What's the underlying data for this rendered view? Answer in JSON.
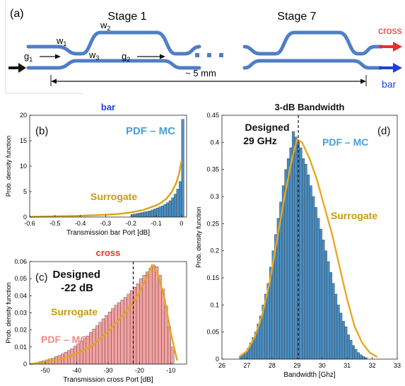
{
  "panel_a": {
    "tag": "(a)",
    "stage1": "Stage 1",
    "stage7": "Stage 7",
    "w1": "w",
    "w1_sub": "1",
    "w2": "w",
    "w2_sub": "2",
    "w3": "w",
    "w3_sub": "3",
    "g1": "g",
    "g1_sub": "1",
    "g2": "g",
    "g2_sub": "2",
    "length": "~ 5 mm",
    "cross": "cross",
    "bar": "bar",
    "colors": {
      "waveguide": "#4f7fc4",
      "cross": "#e8302a",
      "bar": "#1f3fe0"
    }
  },
  "chart_data": [
    {
      "panel": "(b)",
      "type": "bar",
      "title": "bar",
      "title_color": "#1f3fe0",
      "xlabel": "Transmission bar Port [dB]",
      "ylabel": "Prob. density function",
      "xlim": [
        -0.6,
        0.02
      ],
      "ylim": [
        0,
        20
      ],
      "xticks": [
        -0.6,
        -0.5,
        -0.4,
        -0.3,
        -0.2,
        -0.1,
        0
      ],
      "yticks": [
        0,
        5,
        10,
        15,
        20
      ],
      "xtick_labels": [
        "-0.6",
        "-0.5",
        "-0.4",
        "-0.3",
        "-0.2",
        "-0.1",
        "0"
      ],
      "ytick_labels": [
        "0",
        "5",
        "10",
        "15",
        "20"
      ],
      "bar_color": "#4a8ec2",
      "bins": {
        "start": -0.2,
        "width": 0.01,
        "values": [
          0.5,
          0.6,
          0.7,
          0.8,
          0.9,
          1.0,
          1.1,
          1.2,
          1.4,
          1.6,
          1.8,
          2.0,
          2.2,
          2.5,
          2.8,
          3.2,
          3.8,
          4.5,
          5.5,
          7.0,
          19.2
        ]
      },
      "surrogate": {
        "color": "#d9a514",
        "x": [
          -0.6,
          -0.5,
          -0.4,
          -0.3,
          -0.25,
          -0.2,
          -0.15,
          -0.1,
          -0.08,
          -0.06,
          -0.04,
          -0.02,
          -0.01,
          0
        ],
        "y": [
          0.05,
          0.15,
          0.25,
          0.45,
          0.6,
          0.9,
          1.4,
          2.3,
          2.8,
          3.6,
          4.8,
          6.8,
          8.5,
          11.0
        ]
      },
      "annotations": [
        {
          "text": "(b)",
          "role": "tag"
        },
        {
          "text": "PDF – MC",
          "color": "#4a9fd4"
        },
        {
          "text": "Surrogate",
          "color": "#c99a10"
        }
      ]
    },
    {
      "panel": "(c)",
      "type": "bar",
      "title": "cross",
      "title_color": "#e8302a",
      "xlabel": "Transmission cross Port [dB]",
      "ylabel": "Prob. density function",
      "xlim": [
        -55,
        -5
      ],
      "ylim": [
        0,
        0.06
      ],
      "xticks": [
        -50,
        -40,
        -30,
        -20,
        -10
      ],
      "yticks": [
        0,
        0.01,
        0.02,
        0.03,
        0.04,
        0.05,
        0.06
      ],
      "xtick_labels": [
        "-50",
        "-40",
        "-30",
        "-20",
        "-10"
      ],
      "ytick_labels": [
        "0",
        "0.01",
        "0.02",
        "0.03",
        "0.04",
        "0.05",
        "0.06"
      ],
      "bar_color": "#f4a0a0",
      "bins": {
        "start": -54,
        "width": 1,
        "values": [
          0.0005,
          0.001,
          0.0015,
          0.002,
          0.0025,
          0.003,
          0.0035,
          0.0045,
          0.005,
          0.006,
          0.007,
          0.008,
          0.009,
          0.0105,
          0.012,
          0.0135,
          0.015,
          0.0165,
          0.0185,
          0.0205,
          0.0225,
          0.0245,
          0.0265,
          0.0285,
          0.0305,
          0.0325,
          0.0345,
          0.036,
          0.0375,
          0.039,
          0.041,
          0.043,
          0.045,
          0.047,
          0.05,
          0.052,
          0.054,
          0.056,
          0.058,
          0.057,
          0.052,
          0.044,
          0.034,
          0.022,
          0.01
        ]
      },
      "surrogate": {
        "color": "#e0a820",
        "x": [
          -55,
          -50,
          -45,
          -40,
          -35,
          -30,
          -25,
          -22,
          -20,
          -18,
          -16,
          -14,
          -12,
          -10,
          -8
        ],
        "y": [
          0.0,
          0.001,
          0.003,
          0.006,
          0.011,
          0.019,
          0.029,
          0.036,
          0.042,
          0.05,
          0.058,
          0.052,
          0.038,
          0.018,
          0.002
        ]
      },
      "designed_line_x": -22,
      "annotations": [
        {
          "text": "(c)",
          "role": "tag"
        },
        {
          "text": "Designed",
          "color": "#111111"
        },
        {
          "text": "-22 dB",
          "color": "#111111"
        },
        {
          "text": "Surrogate",
          "color": "#c99a10"
        },
        {
          "text": "PDF – MC",
          "color": "#f08a8a"
        }
      ]
    },
    {
      "panel": "(d)",
      "type": "bar",
      "title": "3-dB Bandwidth",
      "title_color": "#111111",
      "xlabel": "Bandwidth [Ghz]",
      "ylabel": "Prob. density function",
      "xlim": [
        26,
        33
      ],
      "ylim": [
        0,
        0.45
      ],
      "xticks": [
        26,
        27,
        28,
        29,
        30,
        31,
        32,
        33
      ],
      "yticks": [
        0,
        0.05,
        0.1,
        0.15,
        0.2,
        0.25,
        0.3,
        0.35,
        0.4,
        0.45
      ],
      "xtick_labels": [
        "26",
        "27",
        "28",
        "29",
        "30",
        "31",
        "32",
        "33"
      ],
      "ytick_labels": [
        "0",
        "0.05",
        "0.1",
        "0.15",
        "0.2",
        "0.25",
        "0.3",
        "0.35",
        "0.4",
        "0.45"
      ],
      "bar_color": "#4a8ec2",
      "bins": {
        "start": 26.7,
        "width": 0.1,
        "values": [
          0.005,
          0.01,
          0.012,
          0.02,
          0.03,
          0.04,
          0.05,
          0.065,
          0.08,
          0.1,
          0.12,
          0.14,
          0.17,
          0.2,
          0.23,
          0.26,
          0.29,
          0.32,
          0.35,
          0.37,
          0.39,
          0.42,
          0.41,
          0.4,
          0.39,
          0.37,
          0.36,
          0.34,
          0.32,
          0.3,
          0.28,
          0.26,
          0.24,
          0.22,
          0.2,
          0.18,
          0.16,
          0.14,
          0.12,
          0.1,
          0.085,
          0.07,
          0.06,
          0.045,
          0.035,
          0.025,
          0.018,
          0.012,
          0.008,
          0.005,
          0.003
        ]
      },
      "surrogate": {
        "color": "#e8a820",
        "x": [
          26.7,
          27.0,
          27.3,
          27.6,
          27.9,
          28.2,
          28.5,
          28.8,
          29.0,
          29.2,
          29.5,
          29.8,
          30.1,
          30.4,
          30.7,
          31.0,
          31.3,
          31.6,
          31.9,
          32.2
        ],
        "y": [
          0.005,
          0.015,
          0.04,
          0.08,
          0.14,
          0.22,
          0.3,
          0.37,
          0.405,
          0.4,
          0.37,
          0.33,
          0.28,
          0.23,
          0.17,
          0.11,
          0.06,
          0.03,
          0.012,
          0.004
        ]
      },
      "designed_line_x": 29.05,
      "annotations": [
        {
          "text": "(d)",
          "role": "tag"
        },
        {
          "text": "Designed",
          "color": "#111111"
        },
        {
          "text": "29 GHz",
          "color": "#111111"
        },
        {
          "text": "PDF – MC",
          "color": "#4a9fd4"
        },
        {
          "text": "Surrogate",
          "color": "#c99a10"
        }
      ]
    }
  ]
}
